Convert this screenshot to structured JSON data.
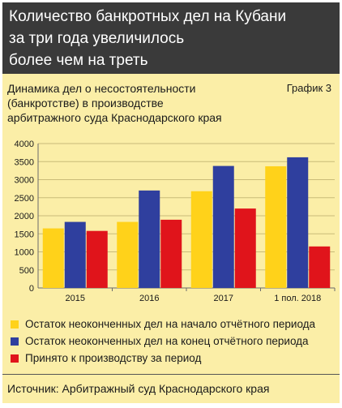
{
  "header": {
    "line1": "Количество банкротных дел на Кубани",
    "line2": "за три года увеличилось",
    "line3": "более чем на треть"
  },
  "subtitle": {
    "line1": "Динамика дел о несостоятельности",
    "line2": "(банкротстве) в производстве",
    "line3": "арбитражного суда Краснодарского края"
  },
  "graph_label": "График 3",
  "source": "Источник: Арбитражный суд Краснодарского края",
  "colors": {
    "yellow": "#ffd21a",
    "blue": "#2f3f9e",
    "red": "#e0141b"
  },
  "chart_data": {
    "type": "bar",
    "categories": [
      "2015",
      "2016",
      "2017",
      "1 пол. 2018"
    ],
    "ylim": [
      0,
      4000
    ],
    "yticks": [
      0,
      500,
      1000,
      1500,
      2000,
      2500,
      3000,
      3500,
      4000
    ],
    "series": [
      {
        "name": "Остаток неоконченных дел на начало отчётного периода",
        "color": "#ffd21a",
        "values": [
          1650,
          1830,
          2680,
          3370
        ]
      },
      {
        "name": "Остаток неоконченных дел на конец отчётного периода",
        "color": "#2f3f9e",
        "values": [
          1830,
          2700,
          3380,
          3620
        ]
      },
      {
        "name": "Принято к производству за период",
        "color": "#e0141b",
        "values": [
          1580,
          1890,
          2200,
          1150
        ]
      }
    ],
    "grid": true,
    "legend": "bottom"
  }
}
